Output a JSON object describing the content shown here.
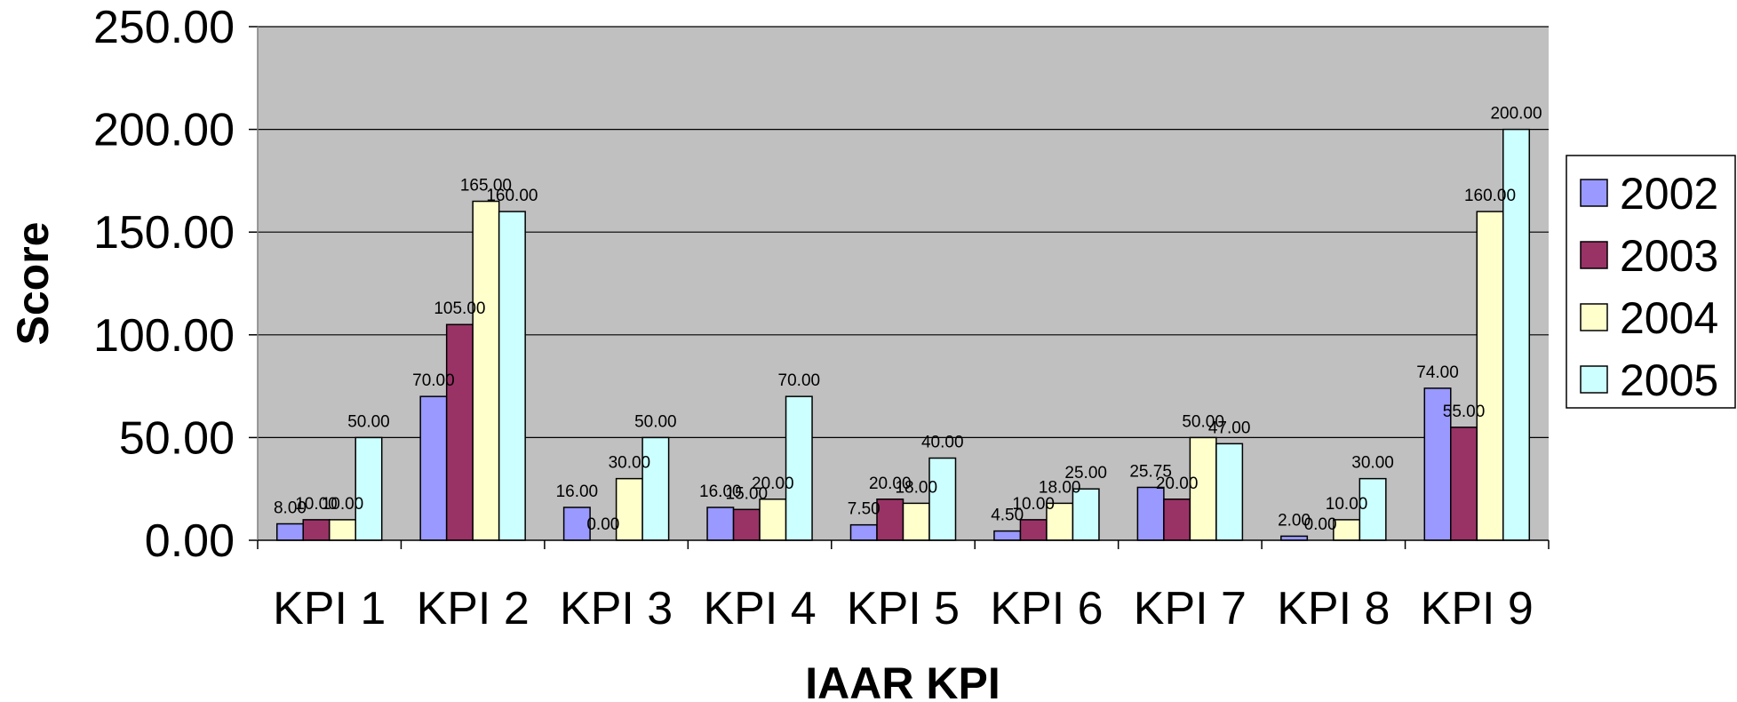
{
  "chart_data": {
    "type": "bar",
    "title": "",
    "xlabel": "IAAR KPI",
    "ylabel": "Score",
    "ylim": [
      0,
      250
    ],
    "yticks": [
      "0.00",
      "50.00",
      "100.00",
      "150.00",
      "200.00",
      "250.00"
    ],
    "grid": true,
    "legend_position": "right",
    "plot_background": "#c0c0c0",
    "categories": [
      "KPI 1",
      "KPI 2",
      "KPI 3",
      "KPI 4",
      "KPI 5",
      "KPI 6",
      "KPI 7",
      "KPI 8",
      "KPI 9"
    ],
    "series": [
      {
        "name": "2002",
        "color": "#9999ff",
        "values": [
          8.0,
          70.0,
          16.0,
          16.0,
          7.5,
          4.5,
          25.75,
          2.0,
          74.0
        ]
      },
      {
        "name": "2003",
        "color": "#993366",
        "values": [
          10.0,
          105.0,
          0.0,
          15.0,
          20.0,
          10.0,
          20.0,
          0.0,
          55.0
        ]
      },
      {
        "name": "2004",
        "color": "#ffffcc",
        "values": [
          10.0,
          165.0,
          30.0,
          20.0,
          18.0,
          18.0,
          50.0,
          10.0,
          160.0
        ]
      },
      {
        "name": "2005",
        "color": "#ccffff",
        "values": [
          50.0,
          160.0,
          50.0,
          70.0,
          40.0,
          25.0,
          47.0,
          30.0,
          200.0
        ]
      }
    ]
  }
}
